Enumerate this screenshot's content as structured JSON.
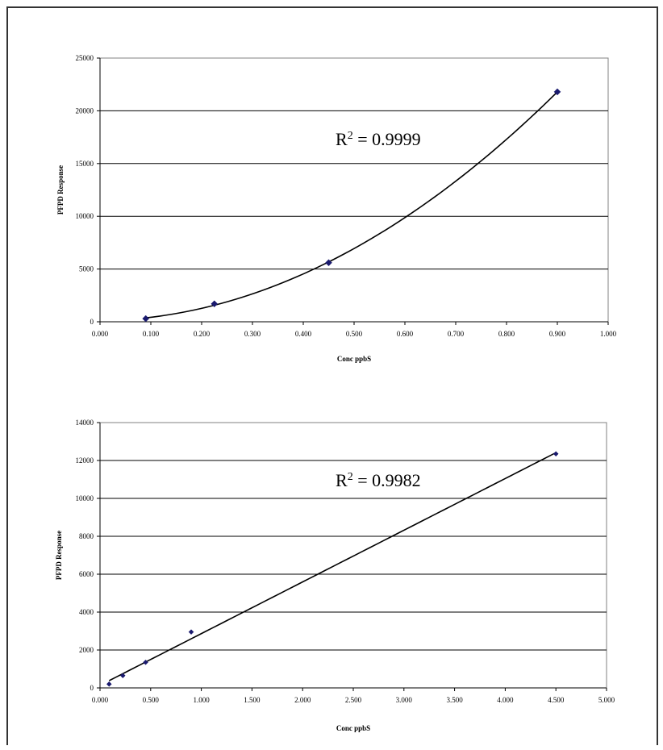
{
  "chart_data": [
    {
      "type": "scatter",
      "xlabel": "Conc ppbS",
      "ylabel": "PFPD Response",
      "xlim": [
        0,
        1
      ],
      "ylim": [
        0,
        25000
      ],
      "xticks": [
        "0.000",
        "0.100",
        "0.200",
        "0.300",
        "0.400",
        "0.500",
        "0.600",
        "0.700",
        "0.800",
        "0.900",
        "1.000"
      ],
      "yticks": [
        "0",
        "5000",
        "10000",
        "15000",
        "20000",
        "25000"
      ],
      "grid": "horizontal",
      "series": [
        {
          "x": [
            0.09,
            0.225,
            0.45,
            0.9
          ],
          "y": [
            300,
            1700,
            5600,
            21800
          ]
        }
      ],
      "trendline": {
        "kind": "polynomial",
        "x_start": 0.09,
        "x_end": 0.9
      },
      "annotation": {
        "r2_prefix": "R",
        "r2_exp": "2",
        "r2_value": " = 0.9999"
      },
      "marker_color": "#1a1a6e"
    },
    {
      "type": "scatter",
      "xlabel": "Conc ppbS",
      "ylabel": "PFPD Response",
      "xlim": [
        0,
        5
      ],
      "ylim": [
        0,
        14000
      ],
      "xticks": [
        "0.000",
        "0.500",
        "1.000",
        "1.500",
        "2.000",
        "2.500",
        "3.000",
        "3.500",
        "4.000",
        "4.500",
        "5.000"
      ],
      "yticks": [
        "0",
        "2000",
        "4000",
        "6000",
        "8000",
        "10000",
        "12000",
        "14000"
      ],
      "grid": "horizontal",
      "series": [
        {
          "x": [
            0.09,
            0.225,
            0.45,
            0.9,
            4.5
          ],
          "y": [
            200,
            650,
            1350,
            2950,
            12350
          ]
        }
      ],
      "trendline": {
        "kind": "linear",
        "x_start": 0.09,
        "x_end": 4.5
      },
      "annotation": {
        "r2_prefix": "R",
        "r2_exp": "2",
        "r2_value": " = 0.9982"
      },
      "marker_color": "#1a1a6e"
    }
  ]
}
